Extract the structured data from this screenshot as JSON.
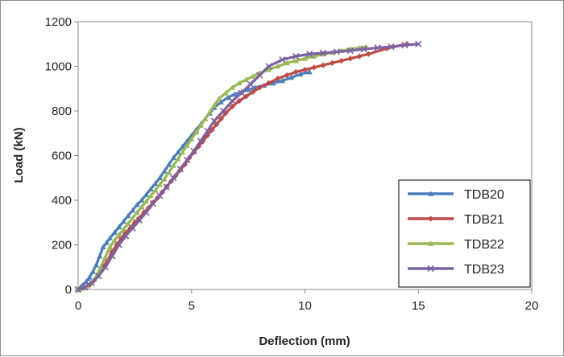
{
  "chart_data": {
    "type": "line",
    "title": "",
    "xlabel": "Deflection (mm)",
    "ylabel": "Load (kN)",
    "xlim": [
      0,
      20
    ],
    "ylim": [
      0,
      1200
    ],
    "xticks": [
      0,
      5,
      10,
      15,
      20
    ],
    "yticks": [
      0,
      200,
      400,
      600,
      800,
      1000,
      1200
    ],
    "grid": false,
    "legend_position": "bottom-right",
    "series": [
      {
        "name": "TDB20",
        "color": "#4a7ebb",
        "marker": "triangle-up",
        "x": [
          0,
          0.1,
          0.2,
          0.35,
          0.5,
          0.65,
          0.8,
          0.95,
          1.1,
          1.25,
          1.4,
          1.6,
          1.8,
          2.0,
          2.2,
          2.4,
          2.6,
          2.8,
          3.0,
          3.2,
          3.4,
          3.6,
          3.8,
          4.0,
          4.2,
          4.4,
          4.6,
          4.8,
          5.0,
          5.2,
          5.4,
          5.6,
          5.8,
          6.0,
          6.3,
          6.6,
          6.9,
          7.2,
          7.5,
          7.8,
          8.2,
          8.6,
          9.0,
          9.4,
          9.8,
          10.2
        ],
        "y": [
          0,
          10,
          20,
          35,
          55,
          80,
          110,
          150,
          190,
          210,
          230,
          255,
          280,
          305,
          330,
          355,
          380,
          400,
          425,
          450,
          475,
          500,
          530,
          560,
          590,
          615,
          640,
          665,
          690,
          715,
          740,
          765,
          790,
          815,
          840,
          860,
          875,
          885,
          895,
          905,
          915,
          925,
          935,
          950,
          965,
          975
        ]
      },
      {
        "name": "TDB21",
        "color": "#be4b48",
        "marker": "diamond",
        "x": [
          0,
          0.1,
          0.3,
          0.5,
          0.7,
          0.9,
          1.1,
          1.3,
          1.5,
          1.7,
          1.9,
          2.1,
          2.3,
          2.5,
          2.7,
          2.9,
          3.1,
          3.3,
          3.5,
          3.7,
          3.9,
          4.1,
          4.3,
          4.5,
          4.7,
          4.9,
          5.1,
          5.3,
          5.5,
          5.7,
          5.9,
          6.1,
          6.3,
          6.5,
          6.8,
          7.1,
          7.4,
          7.7,
          8.0,
          8.4,
          8.8,
          9.2,
          9.6,
          10.0,
          10.4,
          10.8,
          11.2,
          11.6,
          12.0,
          12.4,
          12.8,
          13.6,
          14.5
        ],
        "y": [
          0,
          3,
          8,
          20,
          40,
          70,
          100,
          130,
          170,
          200,
          230,
          255,
          275,
          300,
          320,
          345,
          365,
          390,
          410,
          435,
          460,
          485,
          510,
          535,
          560,
          590,
          615,
          640,
          665,
          690,
          715,
          740,
          765,
          790,
          820,
          845,
          865,
          885,
          905,
          925,
          945,
          960,
          975,
          985,
          995,
          1005,
          1015,
          1025,
          1035,
          1045,
          1055,
          1080,
          1100
        ]
      },
      {
        "name": "TDB22",
        "color": "#98b954",
        "marker": "triangle-up",
        "x": [
          0,
          0.2,
          0.4,
          0.6,
          0.8,
          1.0,
          1.2,
          1.4,
          1.6,
          1.8,
          2.0,
          2.2,
          2.4,
          2.6,
          2.8,
          3.0,
          3.2,
          3.4,
          3.6,
          3.8,
          4.0,
          4.2,
          4.4,
          4.6,
          4.8,
          5.0,
          5.2,
          5.4,
          5.6,
          5.8,
          6.0,
          6.2,
          6.5,
          6.8,
          7.1,
          7.4,
          7.7,
          8.0,
          8.4,
          8.8,
          9.2,
          9.6,
          10.0,
          10.4,
          10.8,
          11.2,
          11.6,
          12.0,
          12.4,
          12.7
        ],
        "y": [
          0,
          5,
          15,
          30,
          60,
          100,
          145,
          190,
          220,
          245,
          270,
          295,
          320,
          345,
          370,
          395,
          420,
          445,
          470,
          495,
          525,
          555,
          585,
          615,
          645,
          675,
          705,
          735,
          765,
          795,
          825,
          855,
          880,
          905,
          925,
          940,
          955,
          970,
          985,
          1000,
          1015,
          1025,
          1035,
          1045,
          1055,
          1062,
          1070,
          1077,
          1083,
          1088
        ]
      },
      {
        "name": "TDB23",
        "color": "#7d60a0",
        "marker": "x",
        "x": [
          0,
          0.3,
          0.6,
          0.9,
          1.2,
          1.5,
          1.8,
          2.1,
          2.4,
          2.7,
          3.0,
          3.3,
          3.6,
          3.9,
          4.2,
          4.5,
          4.8,
          5.1,
          5.4,
          5.7,
          6.0,
          6.4,
          6.8,
          7.2,
          7.6,
          8.0,
          8.4,
          9.0,
          9.6,
          10.2,
          10.8,
          11.4,
          12.0,
          12.6,
          13.2,
          13.8,
          14.4,
          15.0
        ],
        "y": [
          0,
          10,
          30,
          60,
          100,
          150,
          200,
          240,
          275,
          310,
          345,
          385,
          420,
          460,
          500,
          540,
          580,
          620,
          665,
          710,
          755,
          800,
          845,
          880,
          920,
          960,
          1000,
          1030,
          1045,
          1055,
          1060,
          1065,
          1070,
          1077,
          1083,
          1088,
          1095,
          1100
        ]
      }
    ]
  }
}
